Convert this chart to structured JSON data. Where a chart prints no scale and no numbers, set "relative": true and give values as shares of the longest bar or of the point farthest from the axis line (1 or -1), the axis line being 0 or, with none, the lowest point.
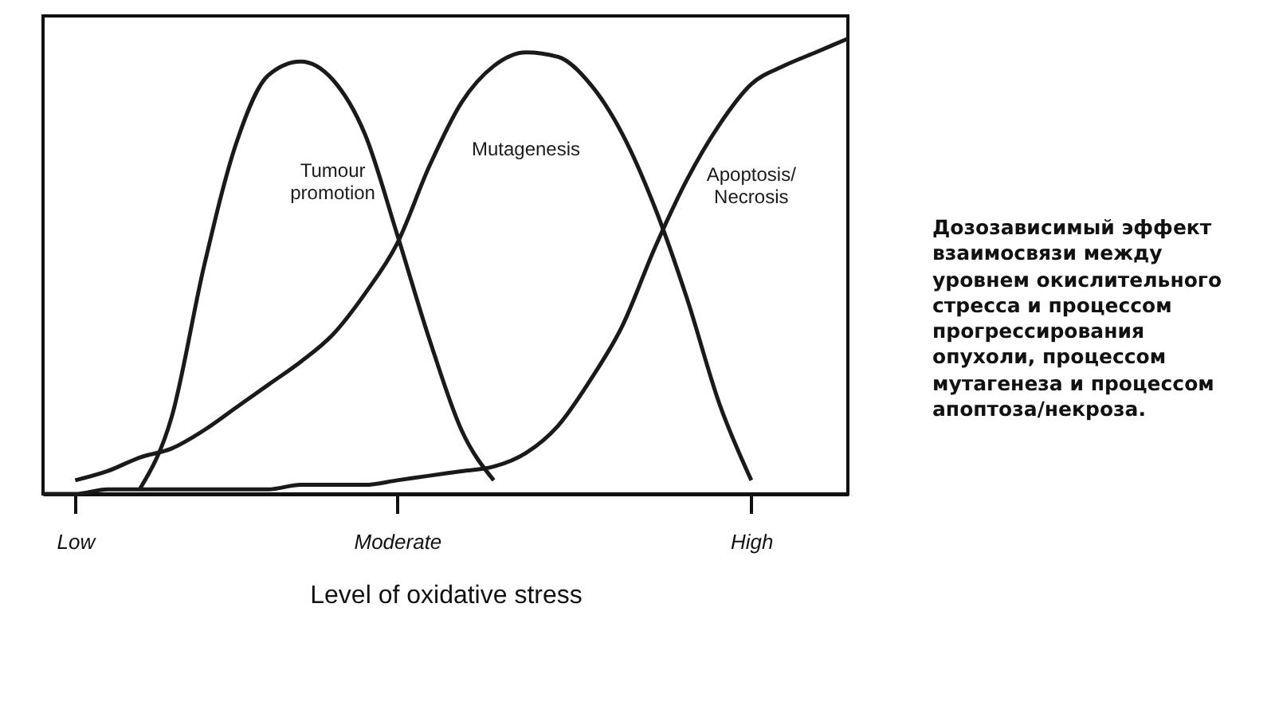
{
  "chart_data": {
    "type": "line",
    "relative": true,
    "xlabel": "Level of oxidative stress",
    "categories": [
      null,
      "Low",
      null,
      null,
      null,
      null,
      null,
      null,
      null,
      null,
      null,
      "Moderate",
      null,
      null,
      null,
      null,
      null,
      null,
      null,
      null,
      null,
      null,
      "High",
      null,
      null,
      null
    ],
    "grid": false,
    "legend": false,
    "marker": "none",
    "line_style": "solid",
    "annotations": [
      "Дозозависимый эффект взаимосвязи между уровнем окислительного стресса и процессом прогрессирования опухоли, процессом мутагенеза и процессом апоптоза/некроза."
    ],
    "series": [
      {
        "name": "Tumour promotion",
        "color": "#1a1a1a",
        "values": [
          null,
          null,
          null,
          0.01,
          0.17,
          0.5,
          0.77,
          0.92,
          0.95,
          0.91,
          0.79,
          0.57,
          0.34,
          0.14,
          0.03,
          null,
          null,
          null,
          null,
          null,
          null,
          null,
          null,
          null,
          null,
          null
        ]
      },
      {
        "name": "Mutagenesis",
        "color": "#1a1a1a",
        "values": [
          null,
          0.03,
          0.05,
          0.08,
          0.1,
          0.14,
          0.19,
          0.24,
          0.29,
          0.35,
          0.44,
          0.55,
          0.72,
          0.86,
          0.94,
          0.97,
          0.96,
          0.9,
          0.79,
          0.63,
          0.43,
          0.2,
          0.03,
          null,
          null,
          null
        ]
      },
      {
        "name": "Apoptosis/Necrosis",
        "color": "#1a1a1a",
        "values": [
          0,
          0,
          0.01,
          0.01,
          0.01,
          0.01,
          0.01,
          0.01,
          0.02,
          0.02,
          0.02,
          0.03,
          0.04,
          0.05,
          0.06,
          0.09,
          0.15,
          0.25,
          0.37,
          0.54,
          0.69,
          0.81,
          0.9,
          0.94,
          0.97,
          1
        ]
      }
    ]
  }
}
